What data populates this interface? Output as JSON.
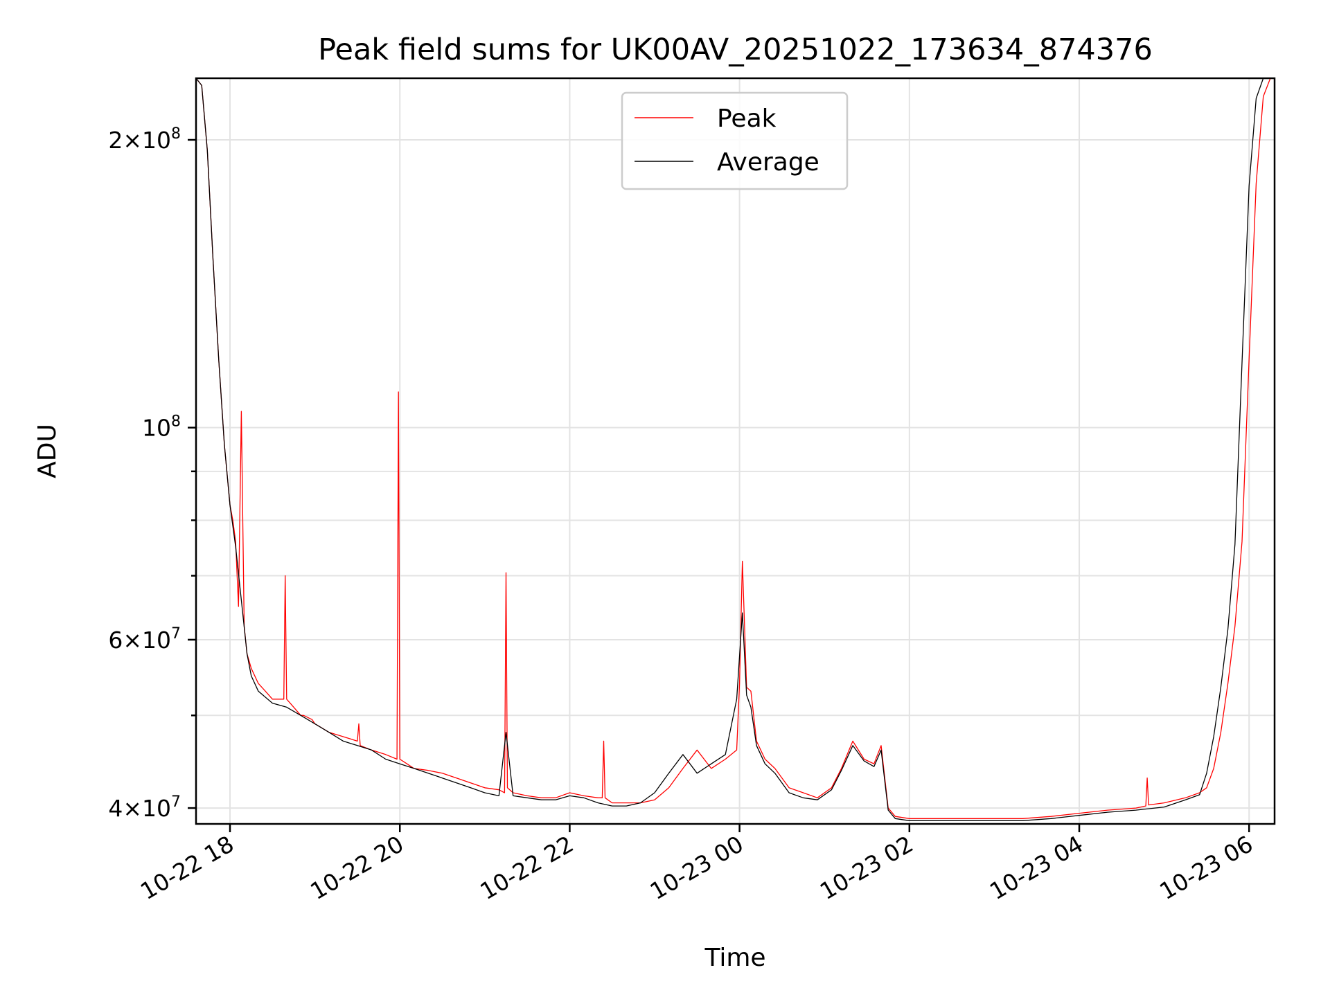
{
  "chart_data": {
    "type": "line",
    "title": "Peak field sums for UK00AV_20251022_173634_874376",
    "xlabel": "Time",
    "ylabel": "ADU",
    "yscale": "log",
    "ylim": [
      38500000,
      232000000
    ],
    "xlim": [
      "2025-10-22T17:36",
      "2025-10-23T06:18"
    ],
    "grid": true,
    "legend": {
      "position": "upper center",
      "entries": [
        "Peak",
        "Average"
      ]
    },
    "x_ticks": [
      {
        "value": "2025-10-22T18:00",
        "label": "10-22 18"
      },
      {
        "value": "2025-10-22T20:00",
        "label": "10-22 20"
      },
      {
        "value": "2025-10-22T22:00",
        "label": "10-22 22"
      },
      {
        "value": "2025-10-23T00:00",
        "label": "10-23 00"
      },
      {
        "value": "2025-10-23T02:00",
        "label": "10-23 02"
      },
      {
        "value": "2025-10-23T04:00",
        "label": "10-23 04"
      },
      {
        "value": "2025-10-23T06:00",
        "label": "10-23 06"
      }
    ],
    "y_major_ticks": [
      {
        "value": 40000000,
        "mantissa": "4",
        "exp": "7"
      },
      {
        "value": 60000000,
        "mantissa": "6",
        "exp": "7"
      },
      {
        "value": 100000000,
        "mantissa": "",
        "exp": "8"
      },
      {
        "value": 200000000,
        "mantissa": "2",
        "exp": "8"
      }
    ],
    "y_minor_grid": [
      50000000,
      70000000,
      80000000,
      90000000
    ],
    "series": [
      {
        "name": "Peak",
        "color": "#ff0000",
        "x": [
          "2025-10-22T17:36",
          "2025-10-22T17:40",
          "2025-10-22T17:44",
          "2025-10-22T17:48",
          "2025-10-22T17:52",
          "2025-10-22T17:56",
          "2025-10-22T18:00",
          "2025-10-22T18:02",
          "2025-10-22T18:04",
          "2025-10-22T18:05",
          "2025-10-22T18:06",
          "2025-10-22T18:08",
          "2025-10-22T18:10",
          "2025-10-22T18:11",
          "2025-10-22T18:12",
          "2025-10-22T18:15",
          "2025-10-22T18:20",
          "2025-10-22T18:25",
          "2025-10-22T18:30",
          "2025-10-22T18:38",
          "2025-10-22T18:39",
          "2025-10-22T18:40",
          "2025-10-22T18:45",
          "2025-10-22T18:50",
          "2025-10-22T18:51",
          "2025-10-22T18:52",
          "2025-10-22T18:58",
          "2025-10-22T19:00",
          "2025-10-22T19:05",
          "2025-10-22T19:10",
          "2025-10-22T19:20",
          "2025-10-22T19:30",
          "2025-10-22T19:31",
          "2025-10-22T19:32",
          "2025-10-22T19:40",
          "2025-10-22T19:50",
          "2025-10-22T19:58",
          "2025-10-22T19:59",
          "2025-10-22T20:00",
          "2025-10-22T20:05",
          "2025-10-22T20:10",
          "2025-10-22T20:20",
          "2025-10-22T20:30",
          "2025-10-22T20:40",
          "2025-10-22T20:50",
          "2025-10-22T21:00",
          "2025-10-22T21:10",
          "2025-10-22T21:14",
          "2025-10-22T21:15",
          "2025-10-22T21:16",
          "2025-10-22T21:20",
          "2025-10-22T21:30",
          "2025-10-22T21:40",
          "2025-10-22T21:50",
          "2025-10-22T22:00",
          "2025-10-22T22:10",
          "2025-10-22T22:20",
          "2025-10-22T22:23",
          "2025-10-22T22:24",
          "2025-10-22T22:25",
          "2025-10-22T22:30",
          "2025-10-22T22:40",
          "2025-10-22T22:50",
          "2025-10-22T23:00",
          "2025-10-22T23:10",
          "2025-10-22T23:20",
          "2025-10-22T23:30",
          "2025-10-22T23:40",
          "2025-10-22T23:50",
          "2025-10-22T23:58",
          "2025-10-23T00:00",
          "2025-10-23T00:02",
          "2025-10-23T00:05",
          "2025-10-23T00:08",
          "2025-10-23T00:12",
          "2025-10-23T00:18",
          "2025-10-23T00:25",
          "2025-10-23T00:35",
          "2025-10-23T00:45",
          "2025-10-23T00:55",
          "2025-10-23T01:05",
          "2025-10-23T01:12",
          "2025-10-23T01:20",
          "2025-10-23T01:28",
          "2025-10-23T01:35",
          "2025-10-23T01:40",
          "2025-10-23T01:45",
          "2025-10-23T01:50",
          "2025-10-23T02:00",
          "2025-10-23T02:20",
          "2025-10-23T02:40",
          "2025-10-23T03:00",
          "2025-10-23T03:20",
          "2025-10-23T03:40",
          "2025-10-23T04:00",
          "2025-10-23T04:20",
          "2025-10-23T04:40",
          "2025-10-23T04:47",
          "2025-10-23T04:48",
          "2025-10-23T04:49",
          "2025-10-23T05:00",
          "2025-10-23T05:15",
          "2025-10-23T05:25",
          "2025-10-23T05:30",
          "2025-10-23T05:35",
          "2025-10-23T05:40",
          "2025-10-23T05:45",
          "2025-10-23T05:50",
          "2025-10-23T05:55",
          "2025-10-23T06:00",
          "2025-10-23T06:05",
          "2025-10-23T06:10",
          "2025-10-23T06:15",
          "2025-10-23T06:18"
        ],
        "values": [
          232000000,
          228000000,
          195000000,
          150000000,
          118000000,
          96000000,
          83000000,
          80000000,
          76000000,
          70000000,
          65000000,
          104000000,
          62000000,
          60000000,
          58000000,
          56000000,
          54000000,
          53000000,
          52000000,
          52000000,
          70000000,
          52000000,
          51000000,
          50000000,
          50000000,
          50000000,
          49500000,
          49000000,
          48500000,
          48000000,
          47500000,
          47000000,
          49000000,
          46500000,
          46000000,
          45500000,
          45000000,
          109000000,
          45000000,
          44500000,
          44000000,
          43800000,
          43500000,
          43000000,
          42500000,
          42000000,
          41800000,
          41500000,
          70500000,
          42000000,
          41500000,
          41200000,
          41000000,
          41000000,
          41500000,
          41200000,
          41000000,
          41000000,
          47000000,
          41000000,
          40500000,
          40500000,
          40500000,
          40800000,
          42000000,
          44000000,
          46000000,
          44000000,
          45000000,
          46000000,
          54000000,
          72500000,
          53500000,
          53000000,
          47000000,
          45000000,
          44000000,
          42000000,
          41500000,
          41000000,
          42000000,
          44000000,
          47000000,
          45000000,
          44500000,
          46500000,
          40000000,
          39200000,
          39000000,
          39000000,
          39000000,
          39000000,
          39000000,
          39200000,
          39500000,
          39800000,
          40000000,
          40200000,
          43000000,
          40300000,
          40500000,
          41000000,
          41500000,
          42000000,
          44000000,
          48000000,
          54000000,
          62000000,
          76000000,
          118000000,
          180000000,
          222000000,
          232000000,
          232000000
        ],
        "linewidth": 1.3
      },
      {
        "name": "Average",
        "color": "#000000",
        "x": [
          "2025-10-22T17:36",
          "2025-10-22T17:40",
          "2025-10-22T17:44",
          "2025-10-22T17:48",
          "2025-10-22T17:52",
          "2025-10-22T17:56",
          "2025-10-22T18:00",
          "2025-10-22T18:04",
          "2025-10-22T18:08",
          "2025-10-22T18:12",
          "2025-10-22T18:15",
          "2025-10-22T18:20",
          "2025-10-22T18:30",
          "2025-10-22T18:40",
          "2025-10-22T18:50",
          "2025-10-22T19:00",
          "2025-10-22T19:10",
          "2025-10-22T19:20",
          "2025-10-22T19:30",
          "2025-10-22T19:40",
          "2025-10-22T19:50",
          "2025-10-22T20:00",
          "2025-10-22T20:10",
          "2025-10-22T20:20",
          "2025-10-22T20:30",
          "2025-10-22T20:40",
          "2025-10-22T20:50",
          "2025-10-22T21:00",
          "2025-10-22T21:10",
          "2025-10-22T21:15",
          "2025-10-22T21:20",
          "2025-10-22T21:30",
          "2025-10-22T21:40",
          "2025-10-22T21:50",
          "2025-10-22T22:00",
          "2025-10-22T22:10",
          "2025-10-22T22:20",
          "2025-10-22T22:30",
          "2025-10-22T22:40",
          "2025-10-22T22:50",
          "2025-10-22T23:00",
          "2025-10-22T23:10",
          "2025-10-22T23:20",
          "2025-10-22T23:30",
          "2025-10-22T23:40",
          "2025-10-22T23:50",
          "2025-10-22T23:58",
          "2025-10-23T00:02",
          "2025-10-23T00:05",
          "2025-10-23T00:08",
          "2025-10-23T00:12",
          "2025-10-23T00:18",
          "2025-10-23T00:25",
          "2025-10-23T00:35",
          "2025-10-23T00:45",
          "2025-10-23T00:55",
          "2025-10-23T01:05",
          "2025-10-23T01:12",
          "2025-10-23T01:20",
          "2025-10-23T01:28",
          "2025-10-23T01:35",
          "2025-10-23T01:40",
          "2025-10-23T01:45",
          "2025-10-23T01:50",
          "2025-10-23T02:00",
          "2025-10-23T02:20",
          "2025-10-23T02:40",
          "2025-10-23T03:00",
          "2025-10-23T03:20",
          "2025-10-23T03:40",
          "2025-10-23T04:00",
          "2025-10-23T04:20",
          "2025-10-23T04:40",
          "2025-10-23T05:00",
          "2025-10-23T05:15",
          "2025-10-23T05:25",
          "2025-10-23T05:30",
          "2025-10-23T05:35",
          "2025-10-23T05:40",
          "2025-10-23T05:45",
          "2025-10-23T05:50",
          "2025-10-23T05:55",
          "2025-10-23T06:00",
          "2025-10-23T06:05",
          "2025-10-23T06:10",
          "2025-10-23T06:15",
          "2025-10-23T06:18"
        ],
        "values": [
          232000000,
          228000000,
          195000000,
          150000000,
          118000000,
          96000000,
          83000000,
          75000000,
          66000000,
          58000000,
          55000000,
          53000000,
          51500000,
          51000000,
          50000000,
          49000000,
          48000000,
          47000000,
          46500000,
          46000000,
          45000000,
          44500000,
          44000000,
          43500000,
          43000000,
          42500000,
          42000000,
          41500000,
          41200000,
          48000000,
          41200000,
          41000000,
          40800000,
          40800000,
          41200000,
          41000000,
          40500000,
          40200000,
          40200000,
          40500000,
          41500000,
          43500000,
          45500000,
          43500000,
          44500000,
          45500000,
          52000000,
          64000000,
          52500000,
          51000000,
          46500000,
          44500000,
          43500000,
          41500000,
          41000000,
          40800000,
          41800000,
          43800000,
          46500000,
          44800000,
          44200000,
          46000000,
          39800000,
          39000000,
          38800000,
          38800000,
          38800000,
          38800000,
          38800000,
          39000000,
          39300000,
          39600000,
          39800000,
          40100000,
          40800000,
          41300000,
          43500000,
          47500000,
          53500000,
          61500000,
          75500000,
          117000000,
          179000000,
          221000000,
          232000000,
          232000000,
          232000000
        ],
        "linewidth": 1.3
      }
    ]
  }
}
